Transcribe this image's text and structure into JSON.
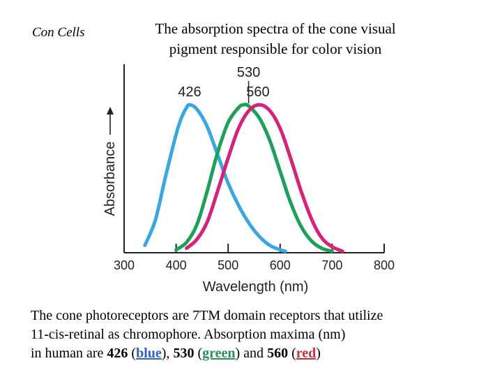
{
  "side_label": "Con Cells",
  "title": {
    "line1": "The absorption spectra of the cone visual",
    "line2": "pigment responsible for color vision"
  },
  "chart_data": {
    "type": "line",
    "title": "",
    "xlabel": "Wavelength (nm)",
    "ylabel": "Absorbance",
    "xlim": [
      300,
      800
    ],
    "xticks": [
      300,
      400,
      500,
      600,
      700,
      800
    ],
    "grid": false,
    "legend": "none",
    "series": [
      {
        "peak_label": "426",
        "color": "#3aa7e0",
        "x": [
          340,
          360,
          380,
          400,
          410,
          420,
          426,
          440,
          460,
          480,
          500,
          520,
          540,
          560,
          580,
          600,
          610
        ],
        "y": [
          0.05,
          0.22,
          0.52,
          0.8,
          0.91,
          0.98,
          1.0,
          0.97,
          0.85,
          0.66,
          0.47,
          0.32,
          0.2,
          0.11,
          0.05,
          0.02,
          0.01
        ]
      },
      {
        "peak_label": "530",
        "color": "#1da05a",
        "x": [
          400,
          420,
          440,
          460,
          480,
          500,
          520,
          530,
          540,
          560,
          580,
          600,
          620,
          640,
          660,
          680,
          700
        ],
        "y": [
          0.02,
          0.07,
          0.19,
          0.42,
          0.68,
          0.88,
          0.98,
          1.0,
          0.99,
          0.91,
          0.76,
          0.55,
          0.34,
          0.18,
          0.08,
          0.03,
          0.01
        ]
      },
      {
        "peak_label": "560",
        "color": "#d6237a",
        "x": [
          420,
          440,
          460,
          480,
          500,
          520,
          540,
          560,
          580,
          600,
          620,
          640,
          660,
          680,
          700,
          720
        ],
        "y": [
          0.03,
          0.09,
          0.21,
          0.42,
          0.64,
          0.84,
          0.96,
          1.0,
          0.96,
          0.84,
          0.64,
          0.42,
          0.23,
          0.1,
          0.04,
          0.01
        ]
      }
    ]
  },
  "caption": {
    "line1": "The cone photoreceptors are 7TM domain receptors  that utilize",
    "line2": " 11-cis-retinal as  chromophore.   Absorption maxima (nm)",
    "line3_a": " in human are ",
    "v1": "426",
    "w1": "blue",
    "sep1": "), ",
    "v2": "530",
    "w2": "green",
    "sep2": ") and ",
    "v3": "560",
    "w3": "red",
    "open": " (",
    "close": ")"
  }
}
